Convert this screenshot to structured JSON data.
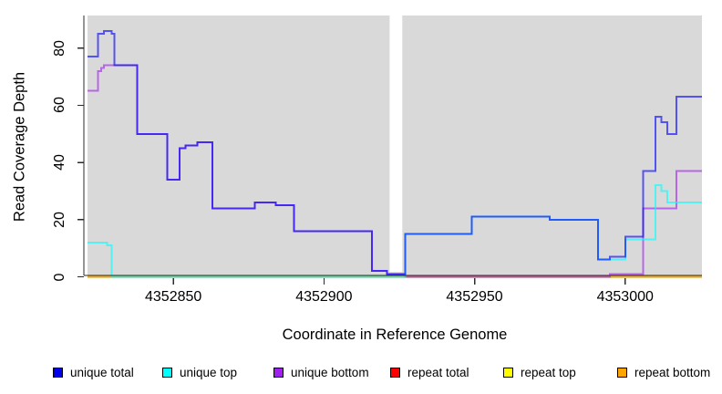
{
  "chart_data": {
    "type": "line",
    "step": true,
    "title": "",
    "xlabel": "Coordinate in Reference Genome",
    "ylabel": "Read Coverage Depth",
    "xlim": [
      4352821.5,
      4353025.5
    ],
    "ylim": [
      0,
      91.5
    ],
    "grid": false,
    "plot_bg": "#d9d9d9",
    "axis_color": "#2b2b2b",
    "line_opacity": 0.62,
    "line_width": 2,
    "x_ticks": [
      {
        "value": 4352850,
        "label": "4352850"
      },
      {
        "value": 4352900,
        "label": "4352900"
      },
      {
        "value": 4352950,
        "label": "4352950"
      },
      {
        "value": 4353000,
        "label": "4353000"
      }
    ],
    "y_ticks": [
      {
        "value": 0,
        "label": "0"
      },
      {
        "value": 20,
        "label": "20"
      },
      {
        "value": 40,
        "label": "40"
      },
      {
        "value": 60,
        "label": "60"
      },
      {
        "value": 80,
        "label": "80"
      }
    ],
    "masked_region": {
      "start": 4352921.8,
      "end": 4352926.0,
      "color": "#ffffff",
      "min_y": 1.7
    },
    "end_x": 4353025.5,
    "series": [
      {
        "name": "repeat total",
        "color": "#FF0000",
        "points": [
          [
            4352821.5,
            0
          ]
        ]
      },
      {
        "name": "repeat top",
        "color": "#FFFF00",
        "points": [
          [
            4352821.5,
            0
          ]
        ]
      },
      {
        "name": "repeat bottom",
        "color": "#FFA500",
        "points": [
          [
            4352821.5,
            0
          ]
        ]
      },
      {
        "name": "unique bottom",
        "color": "#A020F0",
        "points": [
          [
            4352821.5,
            65
          ],
          [
            4352825,
            72
          ],
          [
            4352826,
            73
          ],
          [
            4352827,
            74
          ],
          [
            4352838,
            50
          ],
          [
            4352848,
            34
          ],
          [
            4352852,
            45
          ],
          [
            4352854,
            46
          ],
          [
            4352858,
            47
          ],
          [
            4352863,
            24
          ],
          [
            4352877,
            26
          ],
          [
            4352884,
            25
          ],
          [
            4352890,
            16
          ],
          [
            4352916,
            2
          ],
          [
            4352921,
            1
          ],
          [
            4352927,
            0
          ],
          [
            4352995,
            1
          ],
          [
            4353006,
            24
          ],
          [
            4353017,
            37
          ]
        ]
      },
      {
        "name": "unique top",
        "color": "#00FFFF",
        "points": [
          [
            4352821.5,
            12
          ],
          [
            4352828,
            11
          ],
          [
            4352829.5,
            0
          ],
          [
            4352927,
            15
          ],
          [
            4352949,
            21
          ],
          [
            4352975,
            20
          ],
          [
            4352991,
            6
          ],
          [
            4353000,
            13
          ],
          [
            4353010,
            32
          ],
          [
            4353012,
            30
          ],
          [
            4353014,
            26
          ]
        ]
      },
      {
        "name": "unique total",
        "color": "#0000FF",
        "points": [
          [
            4352821.5,
            77
          ],
          [
            4352825,
            85
          ],
          [
            4352827,
            86
          ],
          [
            4352829.5,
            85
          ],
          [
            4352830.5,
            74
          ],
          [
            4352838,
            50
          ],
          [
            4352848,
            34
          ],
          [
            4352852,
            45
          ],
          [
            4352854,
            46
          ],
          [
            4352858,
            47
          ],
          [
            4352863,
            24
          ],
          [
            4352877,
            26
          ],
          [
            4352884,
            25
          ],
          [
            4352890,
            16
          ],
          [
            4352916,
            2
          ],
          [
            4352921,
            1
          ],
          [
            4352927,
            15
          ],
          [
            4352949,
            21
          ],
          [
            4352975,
            20
          ],
          [
            4352991,
            6
          ],
          [
            4352995,
            7
          ],
          [
            4353000,
            14
          ],
          [
            4353006,
            37
          ],
          [
            4353010,
            56
          ],
          [
            4353012,
            54
          ],
          [
            4353014,
            50
          ],
          [
            4353017,
            63
          ]
        ]
      }
    ],
    "legend": [
      {
        "label": "unique total",
        "color": "#0000EE"
      },
      {
        "label": "unique top",
        "color": "#00FFFF"
      },
      {
        "label": "unique bottom",
        "color": "#A020F0"
      },
      {
        "label": "repeat total",
        "color": "#FF0000"
      },
      {
        "label": "repeat top",
        "color": "#FFFF00"
      },
      {
        "label": "repeat bottom",
        "color": "#FFA500"
      }
    ]
  }
}
